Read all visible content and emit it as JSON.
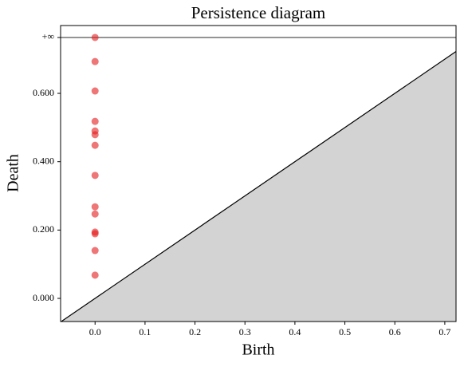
{
  "chart_data": {
    "type": "scatter",
    "title": "Persistence diagram",
    "x_label": "Birth",
    "y_label": "Death",
    "series": [
      {
        "color": "#e41a1c",
        "x": [
          0,
          0,
          0,
          0,
          0,
          0,
          0,
          0,
          0,
          0,
          0,
          0,
          0,
          0
        ],
        "values": [
          0.7635,
          0.693,
          0.607,
          0.518,
          0.49,
          0.479,
          0.448,
          0.36,
          0.268,
          0.247,
          0.194,
          0.189,
          0.14,
          0.068
        ]
      }
    ],
    "xlim": [
      -0.069,
      0.7225
    ],
    "ylim": [
      -0.0677,
      0.7985
    ],
    "xticks": [
      {
        "value": 0,
        "label": "0.0"
      },
      0.1,
      0.2,
      0.3,
      0.4,
      0.5,
      0.6,
      0.7
    ],
    "yticks": [
      {
        "value": 0,
        "label": "0.000"
      },
      {
        "value": 0.2,
        "label": "0.200"
      },
      {
        "value": 0.4,
        "label": "0.400"
      },
      {
        "value": 0.6,
        "label": "0.600"
      },
      {
        "value": 0.7635,
        "label": "+∞"
      }
    ]
  }
}
